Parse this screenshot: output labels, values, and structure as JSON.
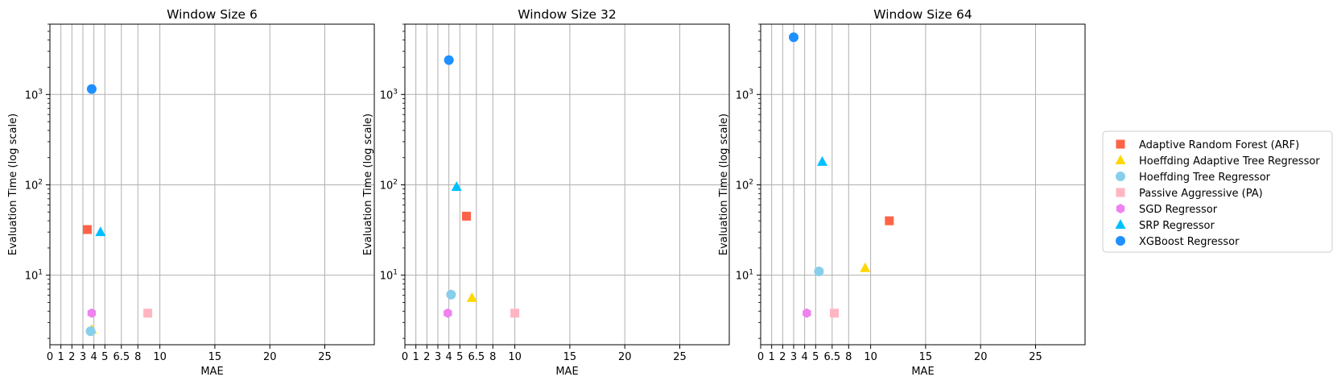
{
  "chart_data": [
    {
      "type": "scatter",
      "title": "Window Size 6",
      "xlabel": "MAE",
      "ylabel": "Evaluation Time (log scale)",
      "xlim": [
        0,
        29.5
      ],
      "ylim": [
        1.7,
        6000
      ],
      "yscale": "log",
      "grid": true,
      "x_ticks": [
        "0",
        "1",
        "2",
        "3",
        "4",
        "5",
        "6.5",
        "8",
        "10",
        "15",
        "20",
        "25"
      ],
      "x_tick_values": [
        0,
        1,
        2,
        3,
        4,
        5,
        6.5,
        8,
        10,
        15,
        20,
        25
      ],
      "y_ticks": [
        {
          "base": "10",
          "exp": "1",
          "value": 10
        },
        {
          "base": "10",
          "exp": "2",
          "value": 100
        },
        {
          "base": "10",
          "exp": "3",
          "value": 1000
        }
      ],
      "series": [
        {
          "name": "Adaptive Random Forest (ARF)",
          "points": [
            {
              "x": 3.4,
              "y": 32
            }
          ]
        },
        {
          "name": "Hoeffding Adaptive Tree Regressor",
          "points": [
            {
              "x": 3.8,
              "y": 2.5
            }
          ]
        },
        {
          "name": "Hoeffding Tree Regressor",
          "points": [
            {
              "x": 3.7,
              "y": 2.4
            }
          ]
        },
        {
          "name": "Passive Aggressive (PA)",
          "points": [
            {
              "x": 8.9,
              "y": 3.8
            }
          ]
        },
        {
          "name": "SGD Regressor",
          "points": [
            {
              "x": 3.8,
              "y": 3.8
            }
          ]
        },
        {
          "name": "SRP Regressor",
          "points": [
            {
              "x": 4.6,
              "y": 30
            }
          ]
        },
        {
          "name": "XGBoost Regressor",
          "points": [
            {
              "x": 3.8,
              "y": 1150
            }
          ]
        }
      ]
    },
    {
      "type": "scatter",
      "title": "Window Size 32",
      "xlabel": "MAE",
      "ylabel": "Evaluation Time (log scale)",
      "xlim": [
        0,
        29.5
      ],
      "ylim": [
        1.7,
        6000
      ],
      "yscale": "log",
      "grid": true,
      "x_ticks": [
        "0",
        "1",
        "2",
        "3",
        "4",
        "5",
        "6.5",
        "8",
        "10",
        "15",
        "20",
        "25"
      ],
      "x_tick_values": [
        0,
        1,
        2,
        3,
        4,
        5,
        6.5,
        8,
        10,
        15,
        20,
        25
      ],
      "y_ticks": [
        {
          "base": "10",
          "exp": "1",
          "value": 10
        },
        {
          "base": "10",
          "exp": "2",
          "value": 100
        },
        {
          "base": "10",
          "exp": "3",
          "value": 1000
        }
      ],
      "series": [
        {
          "name": "Adaptive Random Forest (ARF)",
          "points": [
            {
              "x": 5.6,
              "y": 45
            }
          ]
        },
        {
          "name": "Hoeffding Adaptive Tree Regressor",
          "points": [
            {
              "x": 6.1,
              "y": 5.6
            }
          ]
        },
        {
          "name": "Hoeffding Tree Regressor",
          "points": [
            {
              "x": 4.2,
              "y": 6.1
            }
          ]
        },
        {
          "name": "Passive Aggressive (PA)",
          "points": [
            {
              "x": 10.0,
              "y": 3.8
            }
          ]
        },
        {
          "name": "SGD Regressor",
          "points": [
            {
              "x": 3.9,
              "y": 3.8
            }
          ]
        },
        {
          "name": "SRP Regressor",
          "points": [
            {
              "x": 4.7,
              "y": 95
            }
          ]
        },
        {
          "name": "XGBoost Regressor",
          "points": [
            {
              "x": 4.0,
              "y": 2400
            }
          ]
        }
      ]
    },
    {
      "type": "scatter",
      "title": "Window Size 64",
      "xlabel": "MAE",
      "ylabel": "Evaluation Time (log scale)",
      "xlim": [
        0,
        29.5
      ],
      "ylim": [
        1.7,
        6000
      ],
      "yscale": "log",
      "grid": true,
      "x_ticks": [
        "0",
        "1",
        "2",
        "3",
        "4",
        "5",
        "6.5",
        "8",
        "10",
        "15",
        "20",
        "25"
      ],
      "x_tick_values": [
        0,
        1,
        2,
        3,
        4,
        5,
        6.5,
        8,
        10,
        15,
        20,
        25
      ],
      "y_ticks": [
        {
          "base": "10",
          "exp": "1",
          "value": 10
        },
        {
          "base": "10",
          "exp": "2",
          "value": 100
        },
        {
          "base": "10",
          "exp": "3",
          "value": 1000
        }
      ],
      "series": [
        {
          "name": "Adaptive Random Forest (ARF)",
          "points": [
            {
              "x": 11.7,
              "y": 40
            }
          ]
        },
        {
          "name": "Hoeffding Adaptive Tree Regressor",
          "points": [
            {
              "x": 9.5,
              "y": 12
            }
          ]
        },
        {
          "name": "Hoeffding Tree Regressor",
          "points": [
            {
              "x": 5.3,
              "y": 11
            }
          ]
        },
        {
          "name": "Passive Aggressive (PA)",
          "points": [
            {
              "x": 6.7,
              "y": 3.8
            }
          ]
        },
        {
          "name": "SGD Regressor",
          "points": [
            {
              "x": 4.2,
              "y": 3.8
            }
          ]
        },
        {
          "name": "SRP Regressor",
          "points": [
            {
              "x": 5.6,
              "y": 180
            }
          ]
        },
        {
          "name": "XGBoost Regressor",
          "points": [
            {
              "x": 3.0,
              "y": 4300
            }
          ]
        }
      ]
    }
  ],
  "legend": {
    "placement": "right",
    "entries": [
      {
        "label": "Adaptive Random Forest (ARF)",
        "color": "#FF6347",
        "marker": "square"
      },
      {
        "label": "Hoeffding Adaptive Tree Regressor",
        "color": "#FFD700",
        "marker": "triangle"
      },
      {
        "label": "Hoeffding Tree Regressor",
        "color": "#87CEEB",
        "marker": "circle"
      },
      {
        "label": "Passive Aggressive (PA)",
        "color": "#FFB6C1",
        "marker": "square"
      },
      {
        "label": "SGD Regressor",
        "color": "#EE82EE",
        "marker": "hexagon"
      },
      {
        "label": "SRP Regressor",
        "color": "#00BFFF",
        "marker": "triangle"
      },
      {
        "label": "XGBoost Regressor",
        "color": "#1E90FF",
        "marker": "circle"
      }
    ]
  }
}
